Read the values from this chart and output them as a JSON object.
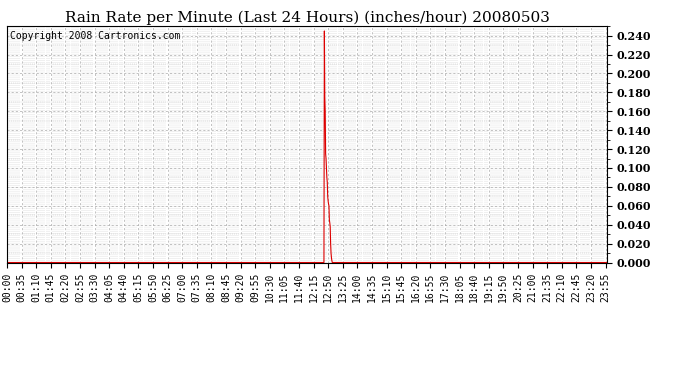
{
  "title": "Rain Rate per Minute (Last 24 Hours) (inches/hour) 20080503",
  "copyright": "Copyright 2008 Cartronics.com",
  "line_color": "#dd0000",
  "bg_color": "#ffffff",
  "grid_color": "#aaaaaa",
  "ylim": [
    0.0,
    0.25
  ],
  "yticks": [
    0.0,
    0.02,
    0.04,
    0.06,
    0.08,
    0.1,
    0.12,
    0.14,
    0.16,
    0.18,
    0.2,
    0.22,
    0.24
  ],
  "title_fontsize": 11,
  "copyright_fontsize": 7,
  "tick_fontsize": 7,
  "total_minutes": 1440,
  "rain_data": [
    [
      0,
      0.0
    ],
    [
      756,
      0.0
    ],
    [
      757,
      0.0
    ],
    [
      758,
      0.0
    ],
    [
      759,
      0.0
    ],
    [
      760,
      0.0
    ],
    [
      761,
      0.245
    ],
    [
      762,
      0.175
    ],
    [
      763,
      0.16
    ],
    [
      764,
      0.115
    ],
    [
      765,
      0.11
    ],
    [
      766,
      0.1
    ],
    [
      767,
      0.09
    ],
    [
      768,
      0.085
    ],
    [
      769,
      0.07
    ],
    [
      770,
      0.065
    ],
    [
      771,
      0.062
    ],
    [
      772,
      0.06
    ],
    [
      773,
      0.045
    ],
    [
      774,
      0.042
    ],
    [
      775,
      0.038
    ],
    [
      776,
      0.02
    ],
    [
      777,
      0.01
    ],
    [
      778,
      0.005
    ],
    [
      779,
      0.002
    ],
    [
      780,
      0.0
    ],
    [
      1439,
      0.0
    ]
  ],
  "xtick_labels": [
    "00:00",
    "00:35",
    "01:10",
    "01:45",
    "02:20",
    "02:55",
    "03:30",
    "04:05",
    "04:40",
    "05:15",
    "05:50",
    "06:25",
    "07:00",
    "07:35",
    "08:10",
    "08:45",
    "09:20",
    "09:55",
    "10:30",
    "11:05",
    "11:40",
    "12:15",
    "12:50",
    "13:25",
    "14:00",
    "14:35",
    "15:10",
    "15:45",
    "16:20",
    "16:55",
    "17:30",
    "18:05",
    "18:40",
    "19:15",
    "19:50",
    "20:25",
    "21:00",
    "21:35",
    "22:10",
    "22:45",
    "23:20",
    "23:55"
  ]
}
